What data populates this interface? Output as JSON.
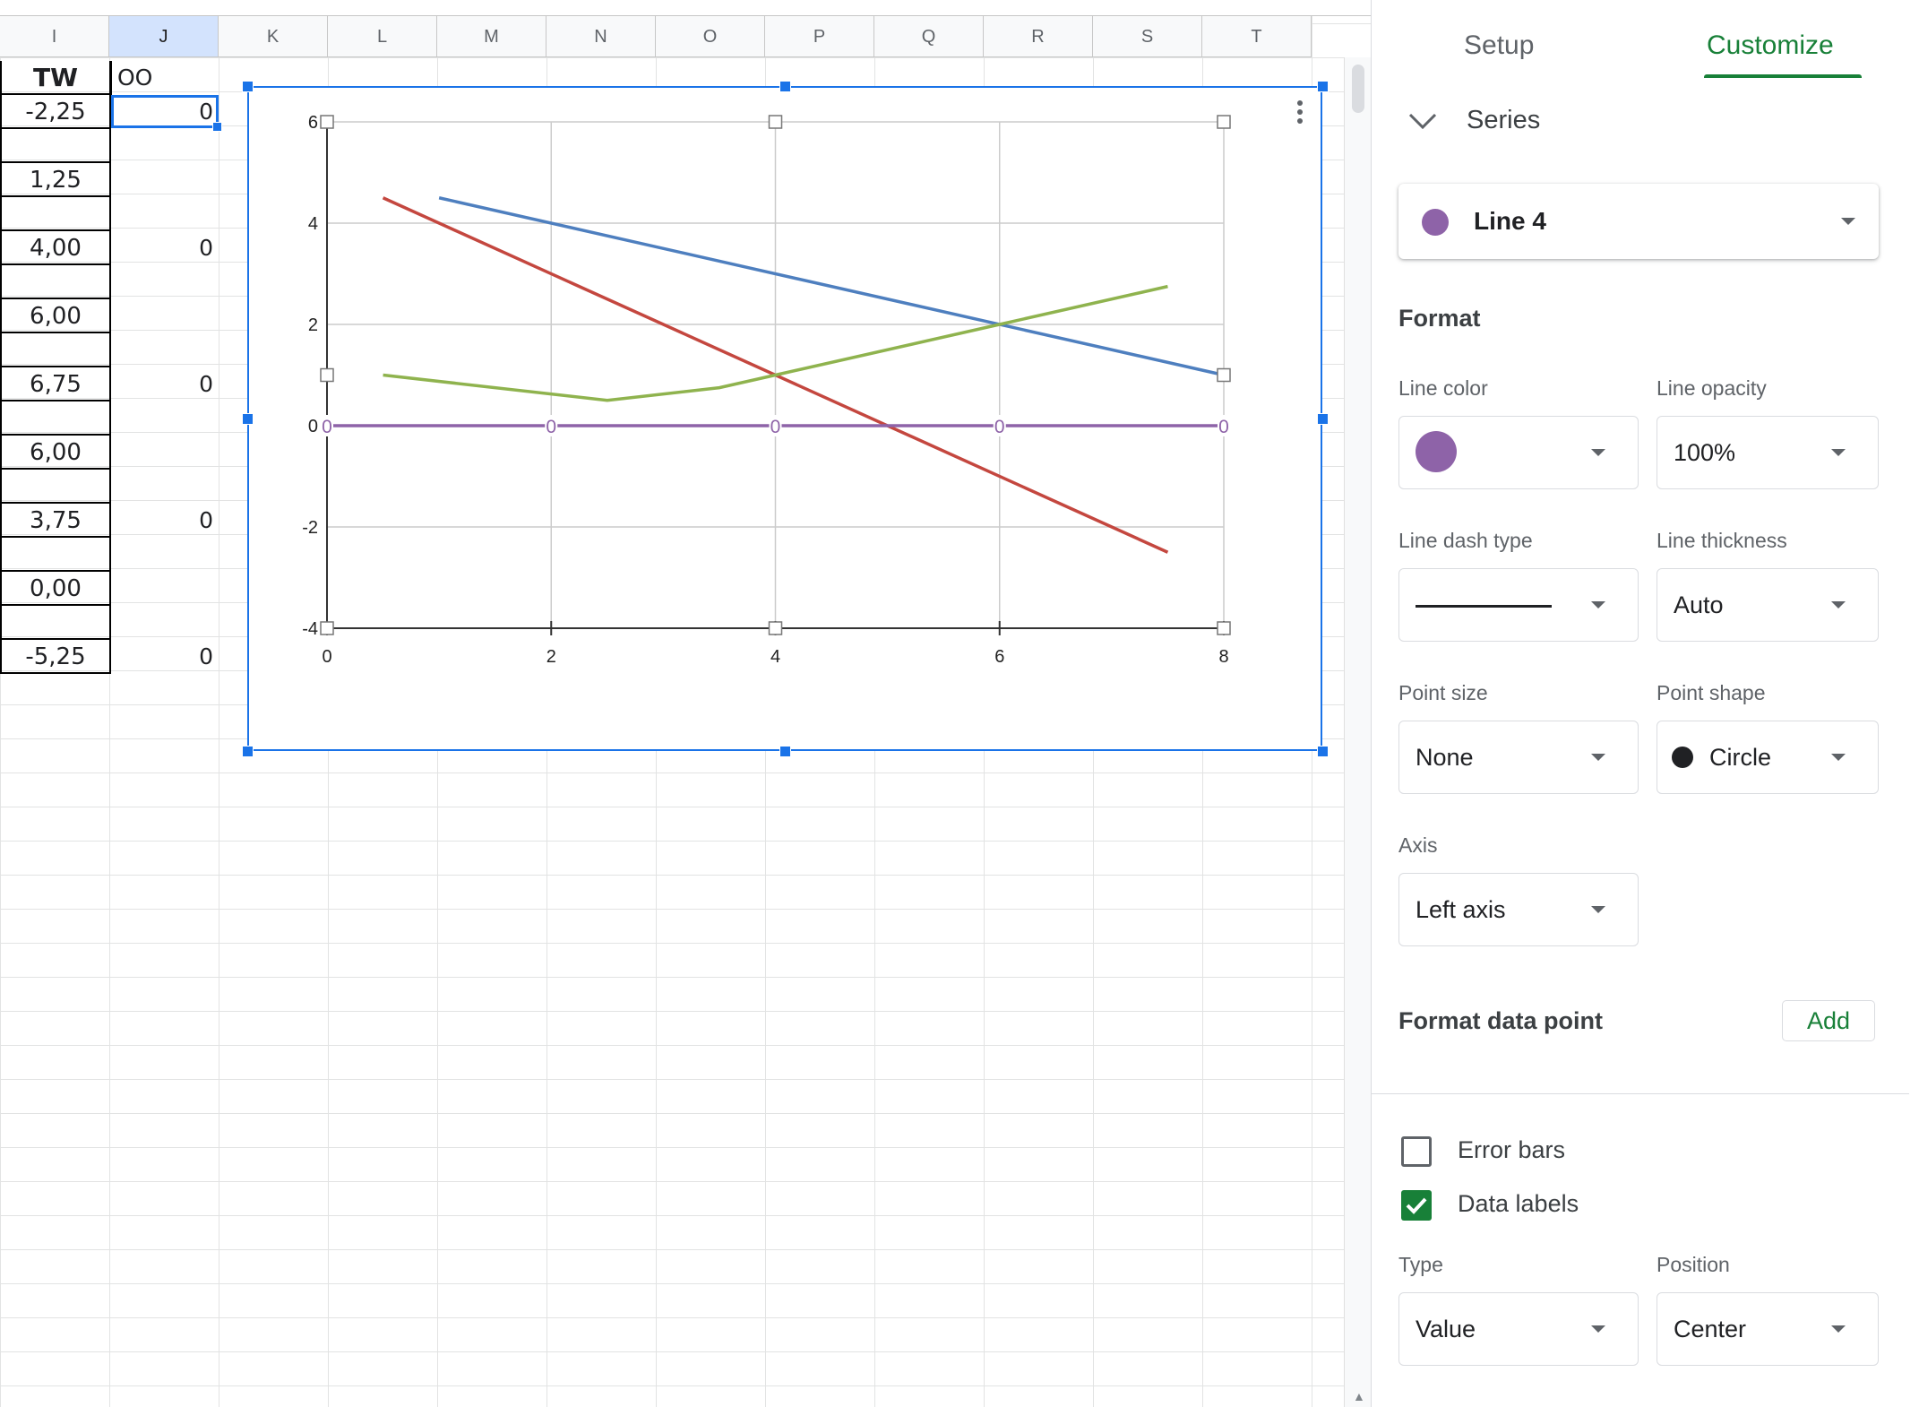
{
  "sheet": {
    "columns": [
      "I",
      "J",
      "K",
      "L",
      "M",
      "N",
      "O",
      "P",
      "Q",
      "R",
      "S",
      "T"
    ],
    "selected_column": "J",
    "header_i": "TW",
    "header_j": "OO",
    "rows": [
      {
        "i": "-2,25",
        "j": "0"
      },
      {
        "i": "",
        "j": ""
      },
      {
        "i": "1,25",
        "j": ""
      },
      {
        "i": "",
        "j": ""
      },
      {
        "i": "4,00",
        "j": "0"
      },
      {
        "i": "",
        "j": ""
      },
      {
        "i": "6,00",
        "j": ""
      },
      {
        "i": "",
        "j": ""
      },
      {
        "i": "6,75",
        "j": "0"
      },
      {
        "i": "",
        "j": ""
      },
      {
        "i": "6,00",
        "j": ""
      },
      {
        "i": "",
        "j": ""
      },
      {
        "i": "3,75",
        "j": "0"
      },
      {
        "i": "",
        "j": ""
      },
      {
        "i": "0,00",
        "j": ""
      },
      {
        "i": "",
        "j": ""
      },
      {
        "i": "-5,25",
        "j": "0"
      }
    ],
    "active_cell": "J2"
  },
  "chart_data": {
    "type": "line",
    "xlim": [
      0,
      8
    ],
    "ylim": [
      -4,
      6
    ],
    "xticks": [
      0,
      2,
      4,
      6,
      8
    ],
    "yticks": [
      -4,
      -2,
      0,
      2,
      4,
      6
    ],
    "grid": true,
    "series": [
      {
        "color": "#4e7fbf",
        "x": [
          1,
          8
        ],
        "y": [
          4.5,
          1
        ]
      },
      {
        "color": "#c4473f",
        "x": [
          0.5,
          7.5
        ],
        "y": [
          4.5,
          -2.5
        ]
      },
      {
        "color": "#8fb34e",
        "x": [
          0.5,
          2.5,
          3.5,
          4,
          6,
          7.5
        ],
        "y": [
          1,
          0.5,
          0.75,
          1,
          2,
          2.75
        ]
      },
      {
        "color": "#8e63a8",
        "x": [
          0,
          2,
          4,
          6,
          8
        ],
        "y": [
          0,
          0,
          0,
          0,
          0
        ],
        "data_labels": [
          "0",
          "0",
          "0",
          "0",
          "0"
        ]
      }
    ]
  },
  "panel": {
    "tabs": {
      "setup": "Setup",
      "customize": "Customize"
    },
    "active_tab": "Customize",
    "section": "Series",
    "series_selected": "Line 4",
    "series_color": "#8e63a8",
    "format_heading": "Format",
    "line_color_label": "Line color",
    "line_opacity_label": "Line opacity",
    "line_opacity_value": "100%",
    "line_dash_label": "Line dash type",
    "line_thickness_label": "Line thickness",
    "line_thickness_value": "Auto",
    "point_size_label": "Point size",
    "point_size_value": "None",
    "point_shape_label": "Point shape",
    "point_shape_value": "Circle",
    "axis_label": "Axis",
    "axis_value": "Left axis",
    "format_data_point": "Format data point",
    "add_label": "Add",
    "error_bars_label": "Error bars",
    "error_bars_checked": false,
    "data_labels_label": "Data labels",
    "data_labels_checked": true,
    "type_label": "Type",
    "type_value": "Value",
    "position_label": "Position",
    "position_value": "Center"
  }
}
